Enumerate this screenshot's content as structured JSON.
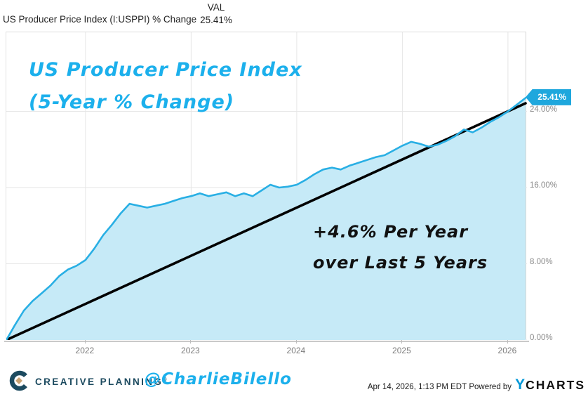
{
  "header": {
    "series_label": "US Producer Price Index (I:USPPI) % Change",
    "val_heading": "VAL",
    "val_value": "25.41%"
  },
  "chart_data": {
    "type": "area",
    "title": "US Producer Price Index (5-Year % Change)",
    "x": [
      "2021-04",
      "2021-05",
      "2021-06",
      "2021-07",
      "2021-08",
      "2021-09",
      "2021-10",
      "2021-11",
      "2021-12",
      "2022-01",
      "2022-02",
      "2022-03",
      "2022-04",
      "2022-05",
      "2022-06",
      "2022-07",
      "2022-08",
      "2022-09",
      "2022-10",
      "2022-11",
      "2022-12",
      "2023-01",
      "2023-02",
      "2023-03",
      "2023-04",
      "2023-05",
      "2023-06",
      "2023-07",
      "2023-08",
      "2023-09",
      "2023-10",
      "2023-11",
      "2023-12",
      "2024-01",
      "2024-02",
      "2024-03",
      "2024-04",
      "2024-05",
      "2024-06",
      "2024-07",
      "2024-08",
      "2024-09",
      "2024-10",
      "2024-11",
      "2024-12",
      "2025-01",
      "2025-02",
      "2025-03",
      "2025-04",
      "2025-05",
      "2025-06",
      "2025-07",
      "2025-08",
      "2025-09",
      "2025-10",
      "2025-11",
      "2025-12",
      "2026-01",
      "2026-02",
      "2026-03"
    ],
    "values": [
      0.0,
      1.6,
      3.1,
      4.1,
      4.9,
      5.7,
      6.7,
      7.4,
      7.8,
      8.4,
      9.6,
      11.0,
      12.1,
      13.3,
      14.3,
      14.1,
      13.9,
      14.1,
      14.3,
      14.6,
      14.9,
      15.1,
      15.4,
      15.1,
      15.3,
      15.5,
      15.1,
      15.4,
      15.1,
      15.7,
      16.3,
      16.0,
      16.1,
      16.3,
      16.8,
      17.4,
      17.9,
      18.1,
      17.9,
      18.3,
      18.6,
      18.9,
      19.2,
      19.4,
      19.9,
      20.4,
      20.8,
      20.6,
      20.3,
      20.5,
      20.9,
      21.4,
      22.1,
      21.8,
      22.3,
      22.9,
      23.4,
      24.0,
      24.7,
      25.41
    ],
    "end_badge": "25.41%",
    "x_tick_labels": [
      "2022",
      "2023",
      "2024",
      "2025",
      "2026"
    ],
    "x_tick_indices": [
      9,
      21,
      33,
      45,
      57
    ],
    "y_ticks": [
      {
        "value": 0,
        "label": "0.00%"
      },
      {
        "value": 8,
        "label": "8.00%"
      },
      {
        "value": 16,
        "label": "16.00%"
      },
      {
        "value": 24,
        "label": "24.00%"
      }
    ],
    "ylim": [
      0,
      32.3
    ],
    "grid": true,
    "legend": "none",
    "trend_line": {
      "start_value": 0.0,
      "end_value": 24.85,
      "rate": "+4.6% per year"
    },
    "annotations": {
      "title_line1": "US Producer Price Index",
      "title_line2": "(5-Year % Change)",
      "trend_line1": "+4.6% Per Year",
      "trend_line2": "over Last 5 Years"
    },
    "colors": {
      "line": "#29afe4",
      "fill": "#c6eaf7",
      "trend": "#000000",
      "badge_bg": "#1ea7dd",
      "badge_text": "#ffffff",
      "annotation_cyan": "#1cb0ec",
      "grid": "#e6e6e6",
      "axis_label": "#8a8a8a"
    }
  },
  "footer": {
    "brand": "CREATIVE PLANNING",
    "trademark": "®",
    "handle": "@CharlieBilello",
    "timestamp": "Apr 14, 2026, 1:13 PM EDT",
    "powered_by": "Powered by",
    "ycharts_y": "Y",
    "ycharts_rest": "CHARTS"
  }
}
